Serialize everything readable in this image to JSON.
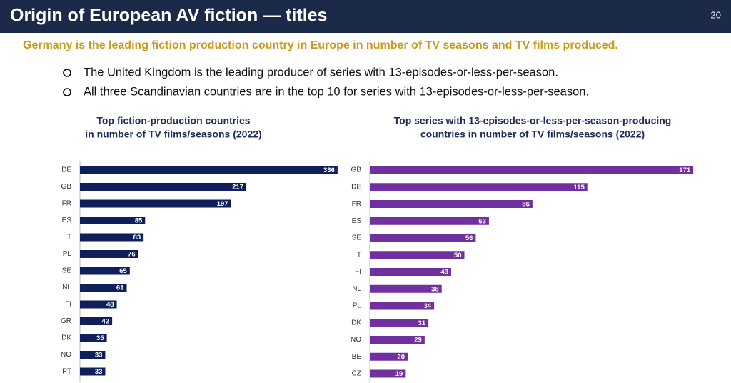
{
  "header": {
    "title": "Origin of European AV fiction — titles",
    "page": "20"
  },
  "subtitle": "Germany is the leading fiction production country in Europe in number of TV seasons and TV films produced.",
  "bullets": [
    "The United Kingdom is the leading producer of series with 13-episodes-or-less-per-season.",
    "All three Scandinavian countries are in the top 10 for series with 13-episodes-or-less-per-season."
  ],
  "chart_data": [
    {
      "type": "bar",
      "orientation": "horizontal",
      "title": [
        "Top fiction-production countries",
        "in number of TV films/seasons (2022)"
      ],
      "categories": [
        "DE",
        "GB",
        "FR",
        "ES",
        "IT",
        "PL",
        "SE",
        "NL",
        "FI",
        "GR",
        "DK",
        "NO",
        "PT"
      ],
      "values": [
        336,
        217,
        197,
        85,
        83,
        76,
        65,
        61,
        48,
        42,
        35,
        33,
        33
      ],
      "color": "#0e1f5b"
    },
    {
      "type": "bar",
      "orientation": "horizontal",
      "title": [
        "Top series with 13-episodes-or-less-per-season-producing",
        "countries in number of TV films/seasons (2022)"
      ],
      "categories": [
        "GB",
        "DE",
        "FR",
        "ES",
        "SE",
        "IT",
        "FI",
        "NL",
        "PL",
        "DK",
        "NO",
        "BE",
        "CZ"
      ],
      "values": [
        171,
        115,
        86,
        63,
        56,
        50,
        43,
        38,
        34,
        31,
        29,
        20,
        19
      ],
      "color": "#7030a0"
    }
  ]
}
